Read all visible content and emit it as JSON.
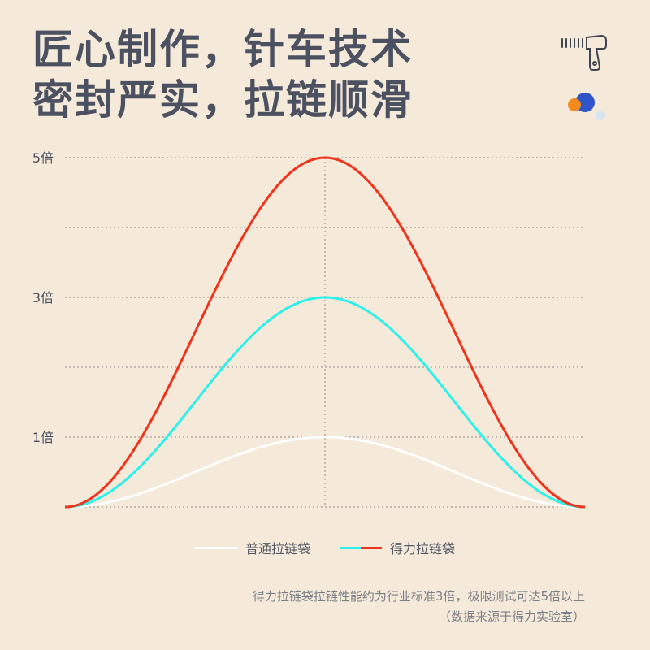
{
  "headline": {
    "line1": "匠心制作，针车技术",
    "line2": "密封严实，拉链顺滑"
  },
  "decor": {
    "zipper_icon": "zipper-pull-icon",
    "dots_icon": "color-dots-icon",
    "dot_colors": [
      "#f58a1f",
      "#2f55c8",
      "#d9e4f2"
    ]
  },
  "chart_data": {
    "type": "line",
    "ytick_labels": [
      "5倍",
      "3倍",
      "1倍"
    ],
    "yticks": [
      5,
      3,
      1
    ],
    "ylim": [
      0,
      5
    ],
    "grid": true,
    "series": [
      {
        "name": "普通拉链袋",
        "color": "#ffffff",
        "peak": 1
      },
      {
        "name": "",
        "color": "#2ef0ea",
        "peak": 3
      },
      {
        "name": "",
        "color": "#f0341c",
        "peak": 5
      }
    ],
    "shape": "bell"
  },
  "legend": {
    "item1": "普通拉链袋",
    "item2": "得力拉链袋",
    "colors": [
      "#ffffff",
      "#2ef0ea",
      "#f0341c"
    ]
  },
  "footnote": {
    "line1": "得力拉链袋拉链性能约为行业标准3倍，极限测试可达5倍以上",
    "line2": "（数据来源于得力实验室）"
  }
}
